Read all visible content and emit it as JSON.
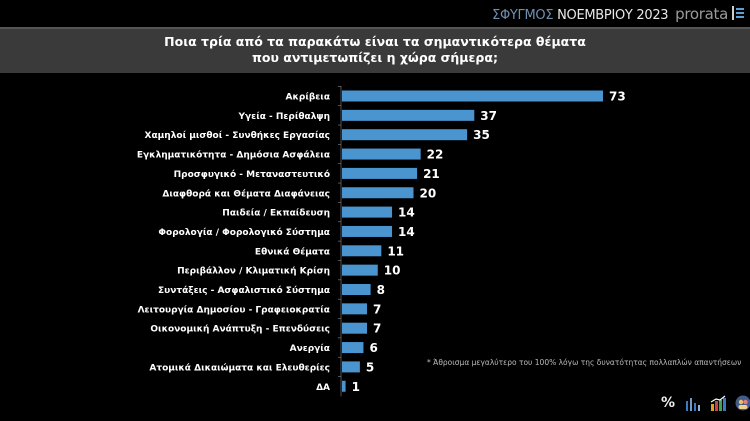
{
  "header": {
    "brand_part1": "ΣΦΥΓΜΟΣ",
    "brand_part2": "ΝΟΕΜΒΡΙΟΥ 2023",
    "brand_logo": "prorata"
  },
  "footnote": "* Άθροισμα μεγαλύτερο του 100% λόγω της δυνατότητας πολλαπλών απαντήσεων",
  "footer_icons": [
    "percent-icon",
    "bar-chart-icon",
    "growth-chart-icon",
    "people-icon"
  ],
  "colors": {
    "bar": "#4a94d0",
    "background": "#000000",
    "title_band": "#3a3a3a"
  },
  "chart_data": {
    "type": "bar",
    "orientation": "horizontal",
    "title_line1": "Ποια τρία από τα παρακάτω είναι τα σημαντικότερα θέματα",
    "title_line2": "που αντιμετωπίζει η χώρα σήμερα;",
    "categories": [
      "Ακρίβεια",
      "Υγεία - Περίθαλψη",
      "Χαμηλοί μισθοί - Συνθήκες Εργασίας",
      "Εγκληματικότητα - Δημόσια Ασφάλεια",
      "Προσφυγικό - Μεταναστευτικό",
      "Διαφθορά και Θέματα Διαφάνειας",
      "Παιδεία / Εκπαίδευση",
      "Φορολογία / Φορολογικό Σύστημα",
      "Εθνικά Θέματα",
      "Περιβάλλον / Κλιματική Κρίση",
      "Συντάξεις - Ασφαλιστικό Σύστημα",
      "Λειτουργία Δημοσίου - Γραφειοκρατία",
      "Οικονομική Ανάπτυξη - Επενδύσεις",
      "Ανεργία",
      "Ατομικά Δικαιώματα και Ελευθερίες",
      "ΔΑ"
    ],
    "values": [
      73,
      37,
      35,
      22,
      21,
      20,
      14,
      14,
      11,
      10,
      8,
      7,
      7,
      6,
      5,
      1
    ],
    "xlabel": "",
    "ylabel": "",
    "xlim": [
      0,
      73
    ],
    "grid": false,
    "legend": "none"
  }
}
